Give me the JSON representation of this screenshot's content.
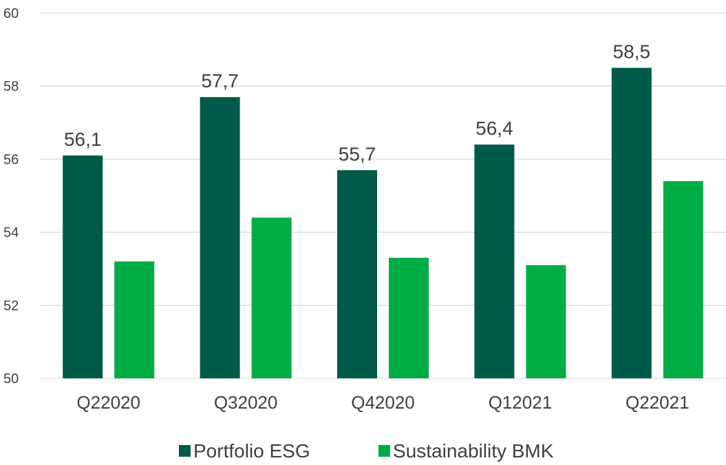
{
  "chart_data": {
    "type": "bar",
    "categories": [
      "Q22020",
      "Q32020",
      "Q42020",
      "Q12021",
      "Q22021"
    ],
    "series": [
      {
        "name": "Portfolio ESG",
        "values": [
          56.1,
          57.7,
          55.7,
          56.4,
          58.5
        ],
        "color": "#005a4a",
        "data_labels": [
          "56,1",
          "57,7",
          "55,7",
          "56,4",
          "58,5"
        ]
      },
      {
        "name": "Sustainability BMK",
        "values": [
          53.2,
          54.4,
          53.3,
          53.1,
          55.4
        ],
        "color": "#00ad45"
      }
    ],
    "ylim": [
      50,
      60
    ],
    "yticks": [
      50,
      52,
      54,
      56,
      58,
      60
    ],
    "ytick_labels": [
      "50",
      "52",
      "54",
      "56",
      "58",
      "60"
    ],
    "grid": true,
    "legend_position": "bottom",
    "gridline_color": "#d9d9d9"
  }
}
